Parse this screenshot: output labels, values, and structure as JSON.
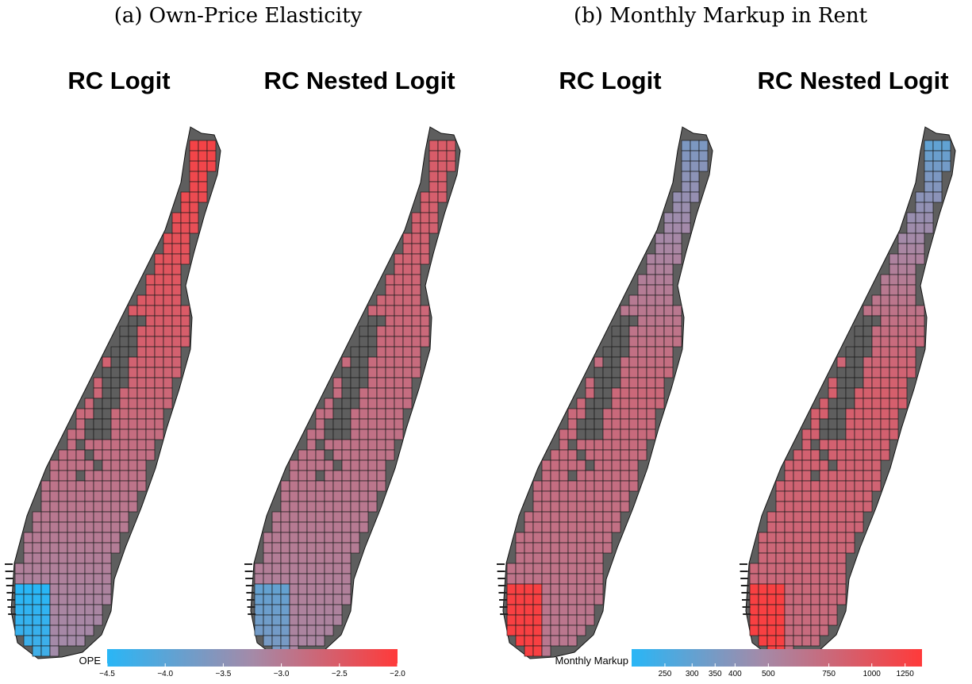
{
  "panels": [
    {
      "caption": "(a) Own-Price Elasticity",
      "maps": [
        "RC Logit",
        "RC Nested Logit"
      ]
    },
    {
      "caption": "(b) Monthly Markup in Rent",
      "maps": [
        "RC Logit",
        "RC Nested Logit"
      ]
    }
  ],
  "colors": {
    "low": "#29b6f6",
    "mid": "#a48aa8",
    "high": "#ff3a3a",
    "park": "#5e5e5e",
    "water": "#ffffff"
  },
  "chart_data": [
    {
      "type": "heatmap",
      "title": "(a) Own-Price Elasticity",
      "maps": [
        {
          "title": "RC Logit",
          "north": -2.1,
          "midtown": -2.7,
          "south": -3.3,
          "downtown_min": -4.5
        },
        {
          "title": "RC Nested Logit",
          "north": -2.5,
          "midtown": -2.8,
          "south": -3.2,
          "downtown_min": -3.9
        }
      ],
      "colorbar": {
        "label": "OPE",
        "range": [
          -4.5,
          -2.0
        ],
        "ticks": [
          "−4.5",
          "−4.0",
          "−3.5",
          "−3.0",
          "−2.5",
          "−2.0"
        ],
        "tick_values": [
          -4.5,
          -4.0,
          -3.5,
          -3.0,
          -2.5,
          -2.0
        ],
        "scale": "linear"
      },
      "legend_position": "bottom"
    },
    {
      "type": "heatmap",
      "title": "(b) Monthly Markup in Rent",
      "maps": [
        {
          "title": "RC Logit",
          "north": 350,
          "midtown": 800,
          "south": 650,
          "downtown_max": 1300
        },
        {
          "title": "RC Nested Logit",
          "north": 260,
          "midtown": 900,
          "south": 750,
          "downtown_max": 1300
        }
      ],
      "colorbar": {
        "label": "Monthly Markup",
        "range": [
          200,
          1400
        ],
        "ticks": [
          "250",
          "300",
          "350",
          "400",
          "500",
          "750",
          "1000",
          "1250"
        ],
        "tick_values": [
          250,
          300,
          350,
          400,
          500,
          750,
          1000,
          1250
        ],
        "scale": "log"
      },
      "legend_position": "bottom"
    }
  ]
}
